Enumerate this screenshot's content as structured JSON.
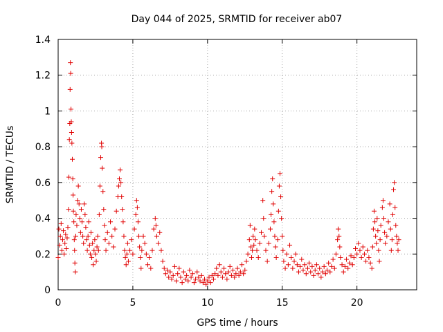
{
  "chart_data": {
    "type": "scatter",
    "title": "Day 044 of 2025, SRMTID for receiver ab07",
    "xlabel": "GPS time / hours",
    "ylabel": "SRMTID / TECUs",
    "xlim": [
      0,
      24
    ],
    "ylim": [
      0,
      1.4
    ],
    "xticks": [
      0,
      5,
      10,
      15,
      20
    ],
    "yticks": [
      0,
      0.2,
      0.4,
      0.6,
      0.8,
      1,
      1.2,
      1.4
    ],
    "xtick_labels": [
      "0",
      "5",
      "10",
      "15",
      "20"
    ],
    "ytick_labels": [
      "0",
      "0.2",
      "0.4",
      "0.6",
      "0.8",
      "1",
      "1.2",
      "1.4"
    ],
    "grid": true,
    "marker": "plus",
    "series": [
      {
        "name": "SRMTID",
        "color": "#e00000",
        "points": [
          [
            0.0,
            0.18
          ],
          [
            0.05,
            0.34
          ],
          [
            0.1,
            0.25
          ],
          [
            0.15,
            0.3
          ],
          [
            0.2,
            0.37
          ],
          [
            0.25,
            0.22
          ],
          [
            0.3,
            0.28
          ],
          [
            0.35,
            0.33
          ],
          [
            0.4,
            0.2
          ],
          [
            0.45,
            0.26
          ],
          [
            0.5,
            0.31
          ],
          [
            0.55,
            0.23
          ],
          [
            0.6,
            0.29
          ],
          [
            0.65,
            0.35
          ],
          [
            0.7,
            0.45
          ],
          [
            0.72,
            0.63
          ],
          [
            0.75,
            0.84
          ],
          [
            0.78,
            0.93
          ],
          [
            0.8,
            1.12
          ],
          [
            0.82,
            1.27
          ],
          [
            0.84,
            1.21
          ],
          [
            0.86,
            1.01
          ],
          [
            0.88,
            0.94
          ],
          [
            0.9,
            0.88
          ],
          [
            0.92,
            0.82
          ],
          [
            0.95,
            0.73
          ],
          [
            0.98,
            0.62
          ],
          [
            1.0,
            0.53
          ],
          [
            1.02,
            0.44
          ],
          [
            1.05,
            0.38
          ],
          [
            1.08,
            0.28
          ],
          [
            1.1,
            0.22
          ],
          [
            1.12,
            0.15
          ],
          [
            1.15,
            0.1
          ],
          [
            1.18,
            0.3
          ],
          [
            1.2,
            0.42
          ],
          [
            1.25,
            0.36
          ],
          [
            1.3,
            0.5
          ],
          [
            1.35,
            0.58
          ],
          [
            1.4,
            0.48
          ],
          [
            1.45,
            0.4
          ],
          [
            1.5,
            0.32
          ],
          [
            1.55,
            0.45
          ],
          [
            1.6,
            0.38
          ],
          [
            1.65,
            0.3
          ],
          [
            1.7,
            0.26
          ],
          [
            1.75,
            0.48
          ],
          [
            1.8,
            0.42
          ],
          [
            1.85,
            0.35
          ],
          [
            1.9,
            0.28
          ],
          [
            1.95,
            0.22
          ],
          [
            2.0,
            0.3
          ],
          [
            2.05,
            0.38
          ],
          [
            2.1,
            0.25
          ],
          [
            2.15,
            0.2
          ],
          [
            2.2,
            0.32
          ],
          [
            2.25,
            0.18
          ],
          [
            2.3,
            0.26
          ],
          [
            2.35,
            0.14
          ],
          [
            2.4,
            0.22
          ],
          [
            2.45,
            0.28
          ],
          [
            2.5,
            0.2
          ],
          [
            2.55,
            0.16
          ],
          [
            2.6,
            0.24
          ],
          [
            2.65,
            0.3
          ],
          [
            2.7,
            0.22
          ],
          [
            2.75,
            0.42
          ],
          [
            2.8,
            0.58
          ],
          [
            2.85,
            0.74
          ],
          [
            2.9,
            0.82
          ],
          [
            2.92,
            0.8
          ],
          [
            2.95,
            0.68
          ],
          [
            3.0,
            0.55
          ],
          [
            3.05,
            0.45
          ],
          [
            3.1,
            0.36
          ],
          [
            3.15,
            0.28
          ],
          [
            3.2,
            0.22
          ],
          [
            3.3,
            0.32
          ],
          [
            3.4,
            0.26
          ],
          [
            3.5,
            0.38
          ],
          [
            3.6,
            0.3
          ],
          [
            3.7,
            0.24
          ],
          [
            3.8,
            0.34
          ],
          [
            3.9,
            0.44
          ],
          [
            4.0,
            0.52
          ],
          [
            4.05,
            0.58
          ],
          [
            4.1,
            0.62
          ],
          [
            4.15,
            0.67
          ],
          [
            4.2,
            0.6
          ],
          [
            4.25,
            0.52
          ],
          [
            4.3,
            0.45
          ],
          [
            4.35,
            0.38
          ],
          [
            4.4,
            0.3
          ],
          [
            4.45,
            0.22
          ],
          [
            4.5,
            0.18
          ],
          [
            4.55,
            0.14
          ],
          [
            4.6,
            0.2
          ],
          [
            4.65,
            0.26
          ],
          [
            4.7,
            0.16
          ],
          [
            4.8,
            0.22
          ],
          [
            4.9,
            0.28
          ],
          [
            5.0,
            0.2
          ],
          [
            5.1,
            0.34
          ],
          [
            5.2,
            0.42
          ],
          [
            5.25,
            0.5
          ],
          [
            5.3,
            0.46
          ],
          [
            5.35,
            0.38
          ],
          [
            5.4,
            0.3
          ],
          [
            5.45,
            0.24
          ],
          [
            5.5,
            0.18
          ],
          [
            5.55,
            0.12
          ],
          [
            5.6,
            0.22
          ],
          [
            5.7,
            0.3
          ],
          [
            5.8,
            0.26
          ],
          [
            5.9,
            0.2
          ],
          [
            6.0,
            0.14
          ],
          [
            6.1,
            0.18
          ],
          [
            6.2,
            0.12
          ],
          [
            6.3,
            0.22
          ],
          [
            6.4,
            0.34
          ],
          [
            6.5,
            0.4
          ],
          [
            6.55,
            0.36
          ],
          [
            6.6,
            0.3
          ],
          [
            6.7,
            0.26
          ],
          [
            6.8,
            0.32
          ],
          [
            6.9,
            0.22
          ],
          [
            7.0,
            0.16
          ],
          [
            7.1,
            0.12
          ],
          [
            7.2,
            0.09
          ],
          [
            7.3,
            0.11
          ],
          [
            7.4,
            0.07
          ],
          [
            7.5,
            0.1
          ],
          [
            7.6,
            0.06
          ],
          [
            7.7,
            0.08
          ],
          [
            7.8,
            0.13
          ],
          [
            7.9,
            0.05
          ],
          [
            8.0,
            0.09
          ],
          [
            8.1,
            0.12
          ],
          [
            8.2,
            0.07
          ],
          [
            8.3,
            0.04
          ],
          [
            8.4,
            0.1
          ],
          [
            8.5,
            0.06
          ],
          [
            8.6,
            0.08
          ],
          [
            8.7,
            0.05
          ],
          [
            8.8,
            0.11
          ],
          [
            8.9,
            0.07
          ],
          [
            9.0,
            0.09
          ],
          [
            9.1,
            0.04
          ],
          [
            9.2,
            0.06
          ],
          [
            9.3,
            0.1
          ],
          [
            9.4,
            0.07
          ],
          [
            9.5,
            0.05
          ],
          [
            9.6,
            0.08
          ],
          [
            9.7,
            0.04
          ],
          [
            9.8,
            0.06
          ],
          [
            9.9,
            0.03
          ],
          [
            10.0,
            0.05
          ],
          [
            10.1,
            0.07
          ],
          [
            10.2,
            0.04
          ],
          [
            10.3,
            0.08
          ],
          [
            10.4,
            0.06
          ],
          [
            10.5,
            0.09
          ],
          [
            10.6,
            0.12
          ],
          [
            10.7,
            0.08
          ],
          [
            10.8,
            0.14
          ],
          [
            10.9,
            0.1
          ],
          [
            11.0,
            0.07
          ],
          [
            11.1,
            0.12
          ],
          [
            11.2,
            0.09
          ],
          [
            11.3,
            0.06
          ],
          [
            11.4,
            0.1
          ],
          [
            11.5,
            0.13
          ],
          [
            11.6,
            0.08
          ],
          [
            11.7,
            0.11
          ],
          [
            11.8,
            0.07
          ],
          [
            11.9,
            0.09
          ],
          [
            12.0,
            0.12
          ],
          [
            12.1,
            0.08
          ],
          [
            12.2,
            0.1
          ],
          [
            12.3,
            0.14
          ],
          [
            12.4,
            0.09
          ],
          [
            12.5,
            0.11
          ],
          [
            12.6,
            0.16
          ],
          [
            12.7,
            0.2
          ],
          [
            12.8,
            0.28
          ],
          [
            12.85,
            0.36
          ],
          [
            12.9,
            0.24
          ],
          [
            12.95,
            0.18
          ],
          [
            13.0,
            0.22
          ],
          [
            13.05,
            0.3
          ],
          [
            13.1,
            0.25
          ],
          [
            13.15,
            0.34
          ],
          [
            13.2,
            0.28
          ],
          [
            13.3,
            0.22
          ],
          [
            13.4,
            0.18
          ],
          [
            13.5,
            0.26
          ],
          [
            13.6,
            0.32
          ],
          [
            13.7,
            0.5
          ],
          [
            13.75,
            0.4
          ],
          [
            13.8,
            0.3
          ],
          [
            13.9,
            0.22
          ],
          [
            14.0,
            0.16
          ],
          [
            14.1,
            0.26
          ],
          [
            14.2,
            0.34
          ],
          [
            14.25,
            0.42
          ],
          [
            14.3,
            0.55
          ],
          [
            14.35,
            0.62
          ],
          [
            14.4,
            0.48
          ],
          [
            14.45,
            0.38
          ],
          [
            14.5,
            0.3
          ],
          [
            14.55,
            0.24
          ],
          [
            14.6,
            0.18
          ],
          [
            14.7,
            0.28
          ],
          [
            14.75,
            0.44
          ],
          [
            14.8,
            0.58
          ],
          [
            14.85,
            0.65
          ],
          [
            14.9,
            0.52
          ],
          [
            14.95,
            0.4
          ],
          [
            15.0,
            0.3
          ],
          [
            15.05,
            0.22
          ],
          [
            15.1,
            0.16
          ],
          [
            15.2,
            0.12
          ],
          [
            15.3,
            0.2
          ],
          [
            15.4,
            0.14
          ],
          [
            15.5,
            0.25
          ],
          [
            15.6,
            0.18
          ],
          [
            15.7,
            0.12
          ],
          [
            15.8,
            0.16
          ],
          [
            15.9,
            0.2
          ],
          [
            16.0,
            0.14
          ],
          [
            16.1,
            0.1
          ],
          [
            16.2,
            0.13
          ],
          [
            16.3,
            0.17
          ],
          [
            16.4,
            0.11
          ],
          [
            16.5,
            0.14
          ],
          [
            16.6,
            0.09
          ],
          [
            16.7,
            0.12
          ],
          [
            16.8,
            0.15
          ],
          [
            16.9,
            0.1
          ],
          [
            17.0,
            0.13
          ],
          [
            17.1,
            0.08
          ],
          [
            17.2,
            0.11
          ],
          [
            17.3,
            0.14
          ],
          [
            17.4,
            0.09
          ],
          [
            17.5,
            0.12
          ],
          [
            17.6,
            0.07
          ],
          [
            17.7,
            0.1
          ],
          [
            17.8,
            0.13
          ],
          [
            17.9,
            0.09
          ],
          [
            18.0,
            0.11
          ],
          [
            18.1,
            0.15
          ],
          [
            18.2,
            0.1
          ],
          [
            18.3,
            0.13
          ],
          [
            18.4,
            0.17
          ],
          [
            18.5,
            0.12
          ],
          [
            18.6,
            0.2
          ],
          [
            18.7,
            0.28
          ],
          [
            18.75,
            0.34
          ],
          [
            18.8,
            0.3
          ],
          [
            18.85,
            0.24
          ],
          [
            18.9,
            0.18
          ],
          [
            19.0,
            0.14
          ],
          [
            19.1,
            0.1
          ],
          [
            19.2,
            0.13
          ],
          [
            19.3,
            0.17
          ],
          [
            19.4,
            0.12
          ],
          [
            19.5,
            0.15
          ],
          [
            19.6,
            0.19
          ],
          [
            19.7,
            0.14
          ],
          [
            19.8,
            0.18
          ],
          [
            19.9,
            0.23
          ],
          [
            20.0,
            0.2
          ],
          [
            20.1,
            0.26
          ],
          [
            20.2,
            0.22
          ],
          [
            20.3,
            0.18
          ],
          [
            20.4,
            0.24
          ],
          [
            20.5,
            0.2
          ],
          [
            20.6,
            0.16
          ],
          [
            20.7,
            0.22
          ],
          [
            20.8,
            0.18
          ],
          [
            20.9,
            0.15
          ],
          [
            21.0,
            0.12
          ],
          [
            21.05,
            0.24
          ],
          [
            21.1,
            0.34
          ],
          [
            21.15,
            0.44
          ],
          [
            21.2,
            0.38
          ],
          [
            21.25,
            0.3
          ],
          [
            21.3,
            0.26
          ],
          [
            21.35,
            0.4
          ],
          [
            21.4,
            0.33
          ],
          [
            21.45,
            0.22
          ],
          [
            21.5,
            0.16
          ],
          [
            21.55,
            0.28
          ],
          [
            21.6,
            0.36
          ],
          [
            21.7,
            0.46
          ],
          [
            21.75,
            0.5
          ],
          [
            21.8,
            0.4
          ],
          [
            21.85,
            0.32
          ],
          [
            21.9,
            0.26
          ],
          [
            22.0,
            0.3
          ],
          [
            22.1,
            0.38
          ],
          [
            22.2,
            0.48
          ],
          [
            22.25,
            0.34
          ],
          [
            22.3,
            0.22
          ],
          [
            22.35,
            0.28
          ],
          [
            22.4,
            0.42
          ],
          [
            22.45,
            0.56
          ],
          [
            22.5,
            0.6
          ],
          [
            22.55,
            0.46
          ],
          [
            22.6,
            0.36
          ],
          [
            22.65,
            0.3
          ],
          [
            22.7,
            0.26
          ],
          [
            22.75,
            0.22
          ],
          [
            22.8,
            0.28
          ]
        ]
      }
    ]
  }
}
